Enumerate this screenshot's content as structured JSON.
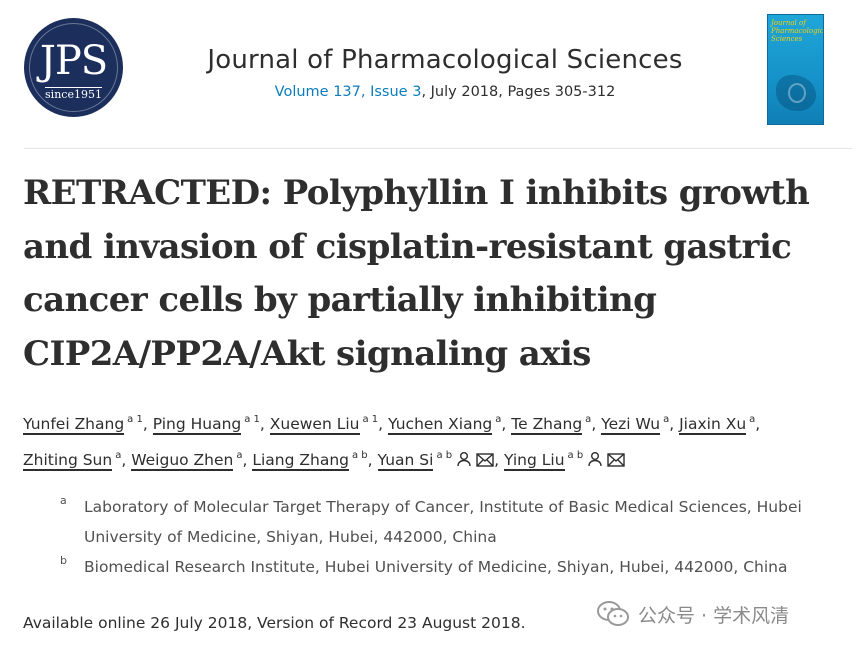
{
  "header": {
    "logo_text": "JPS",
    "logo_subtext": "since1951",
    "journal_title": "Journal of Pharmacological Sciences",
    "volume_link": "Volume 137, Issue 3",
    "issue_details": ", July 2018, Pages 305-312",
    "cover_title": "Journal of Pharmacological Sciences"
  },
  "article": {
    "title": "RETRACTED: Polyphyllin I inhibits growth and invasion of cisplatin-resistant gastric cancer cells by partially inhibiting CIP2A/PP2A/Akt signaling axis"
  },
  "authors": [
    {
      "name": "Yunfei Zhang",
      "sup": "a 1"
    },
    {
      "name": "Ping Huang",
      "sup": "a 1"
    },
    {
      "name": "Xuewen Liu",
      "sup": "a 1"
    },
    {
      "name": "Yuchen Xiang",
      "sup": "a"
    },
    {
      "name": "Te Zhang",
      "sup": "a"
    },
    {
      "name": "Yezi Wu",
      "sup": "a"
    },
    {
      "name": "Jiaxin Xu",
      "sup": "a"
    },
    {
      "name": "Zhiting Sun",
      "sup": "a"
    },
    {
      "name": "Weiguo Zhen",
      "sup": "a"
    },
    {
      "name": "Liang Zhang",
      "sup": "a b"
    },
    {
      "name": "Yuan Si",
      "sup": "a b",
      "icons": [
        "person-icon",
        "envelope-icon"
      ]
    },
    {
      "name": "Ying Liu",
      "sup": "a b",
      "icons": [
        "person-icon",
        "envelope-icon"
      ]
    }
  ],
  "affiliations": [
    {
      "label": "a",
      "text": "Laboratory of Molecular Target Therapy of Cancer, Institute of Basic Medical Sciences, Hubei University of Medicine, Shiyan, Hubei, 442000, China"
    },
    {
      "label": "b",
      "text": "Biomedical Research Institute, Hubei University of Medicine, Shiyan, Hubei, 442000, China"
    }
  ],
  "dates": "Available online 26 July 2018, Version of Record 23 August 2018.",
  "watermark": "公众号 · 学术风清",
  "colors": {
    "logo_bg": "#1b2e5c",
    "link": "#0c7dbb",
    "cover_bg": "#1592c9"
  }
}
